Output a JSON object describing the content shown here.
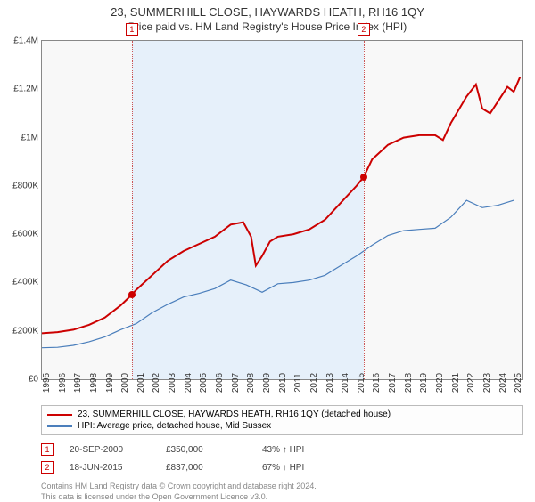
{
  "title": "23, SUMMERHILL CLOSE, HAYWARDS HEATH, RH16 1QY",
  "subtitle": "Price paid vs. HM Land Registry's House Price Index (HPI)",
  "chart": {
    "type": "line",
    "background_color": "#f8f8f8",
    "border_color": "#888888",
    "highlight_band_color": "#e6f0fa",
    "highlight_band": {
      "from_year": 2000.72,
      "to_year": 2015.46
    },
    "ylim": [
      0,
      1400000
    ],
    "ytick_step": 200000,
    "yticks": [
      "£0",
      "£200K",
      "£400K",
      "£600K",
      "£800K",
      "£1M",
      "£1.2M",
      "£1.4M"
    ],
    "xlim": [
      1995,
      2025.5
    ],
    "xticks": [
      1995,
      1996,
      1997,
      1998,
      1999,
      2000,
      2001,
      2002,
      2003,
      2004,
      2005,
      2006,
      2007,
      2008,
      2009,
      2010,
      2011,
      2012,
      2013,
      2014,
      2015,
      2016,
      2017,
      2018,
      2019,
      2020,
      2021,
      2022,
      2023,
      2024,
      2025
    ],
    "series": [
      {
        "name": "23, SUMMERHILL CLOSE, HAYWARDS HEATH, RH16 1QY (detached house)",
        "color": "#cc0000",
        "width": 2,
        "points": [
          [
            1995,
            190000
          ],
          [
            1996,
            195000
          ],
          [
            1997,
            205000
          ],
          [
            1998,
            225000
          ],
          [
            1999,
            255000
          ],
          [
            2000,
            305000
          ],
          [
            2000.72,
            350000
          ],
          [
            2001,
            370000
          ],
          [
            2002,
            430000
          ],
          [
            2003,
            490000
          ],
          [
            2004,
            530000
          ],
          [
            2005,
            560000
          ],
          [
            2006,
            590000
          ],
          [
            2007,
            640000
          ],
          [
            2007.8,
            650000
          ],
          [
            2008.3,
            590000
          ],
          [
            2008.6,
            470000
          ],
          [
            2009,
            510000
          ],
          [
            2009.5,
            570000
          ],
          [
            2010,
            590000
          ],
          [
            2011,
            600000
          ],
          [
            2012,
            620000
          ],
          [
            2013,
            660000
          ],
          [
            2014,
            730000
          ],
          [
            2015,
            800000
          ],
          [
            2015.46,
            837000
          ],
          [
            2016,
            910000
          ],
          [
            2017,
            970000
          ],
          [
            2018,
            1000000
          ],
          [
            2019,
            1010000
          ],
          [
            2020,
            1010000
          ],
          [
            2020.5,
            990000
          ],
          [
            2021,
            1060000
          ],
          [
            2022,
            1170000
          ],
          [
            2022.6,
            1220000
          ],
          [
            2023,
            1120000
          ],
          [
            2023.5,
            1100000
          ],
          [
            2024,
            1150000
          ],
          [
            2024.6,
            1210000
          ],
          [
            2025,
            1190000
          ],
          [
            2025.4,
            1250000
          ]
        ]
      },
      {
        "name": "HPI: Average price, detached house, Mid Sussex",
        "color": "#4a7ebb",
        "width": 1.2,
        "points": [
          [
            1995,
            130000
          ],
          [
            1996,
            132000
          ],
          [
            1997,
            140000
          ],
          [
            1998,
            155000
          ],
          [
            1999,
            175000
          ],
          [
            2000,
            205000
          ],
          [
            2001,
            230000
          ],
          [
            2002,
            275000
          ],
          [
            2003,
            310000
          ],
          [
            2004,
            340000
          ],
          [
            2005,
            355000
          ],
          [
            2006,
            375000
          ],
          [
            2007,
            410000
          ],
          [
            2008,
            390000
          ],
          [
            2009,
            360000
          ],
          [
            2010,
            395000
          ],
          [
            2011,
            400000
          ],
          [
            2012,
            410000
          ],
          [
            2013,
            430000
          ],
          [
            2014,
            470000
          ],
          [
            2015,
            510000
          ],
          [
            2016,
            555000
          ],
          [
            2017,
            595000
          ],
          [
            2018,
            615000
          ],
          [
            2019,
            620000
          ],
          [
            2020,
            625000
          ],
          [
            2021,
            670000
          ],
          [
            2022,
            740000
          ],
          [
            2023,
            710000
          ],
          [
            2024,
            720000
          ],
          [
            2025,
            740000
          ]
        ]
      }
    ],
    "markers": [
      {
        "label": "1",
        "year": 2000.72,
        "value": 350000
      },
      {
        "label": "2",
        "year": 2015.46,
        "value": 837000
      }
    ]
  },
  "legend": {
    "items": [
      {
        "color": "#cc0000",
        "label": "23, SUMMERHILL CLOSE, HAYWARDS HEATH, RH16 1QY (detached house)"
      },
      {
        "color": "#4a7ebb",
        "label": "HPI: Average price, detached house, Mid Sussex"
      }
    ]
  },
  "sales": [
    {
      "marker": "1",
      "date": "20-SEP-2000",
      "price": "£350,000",
      "vs_hpi": "43% ↑ HPI"
    },
    {
      "marker": "2",
      "date": "18-JUN-2015",
      "price": "£837,000",
      "vs_hpi": "67% ↑ HPI"
    }
  ],
  "footer_line1": "Contains HM Land Registry data © Crown copyright and database right 2024.",
  "footer_line2": "This data is licensed under the Open Government Licence v3.0."
}
